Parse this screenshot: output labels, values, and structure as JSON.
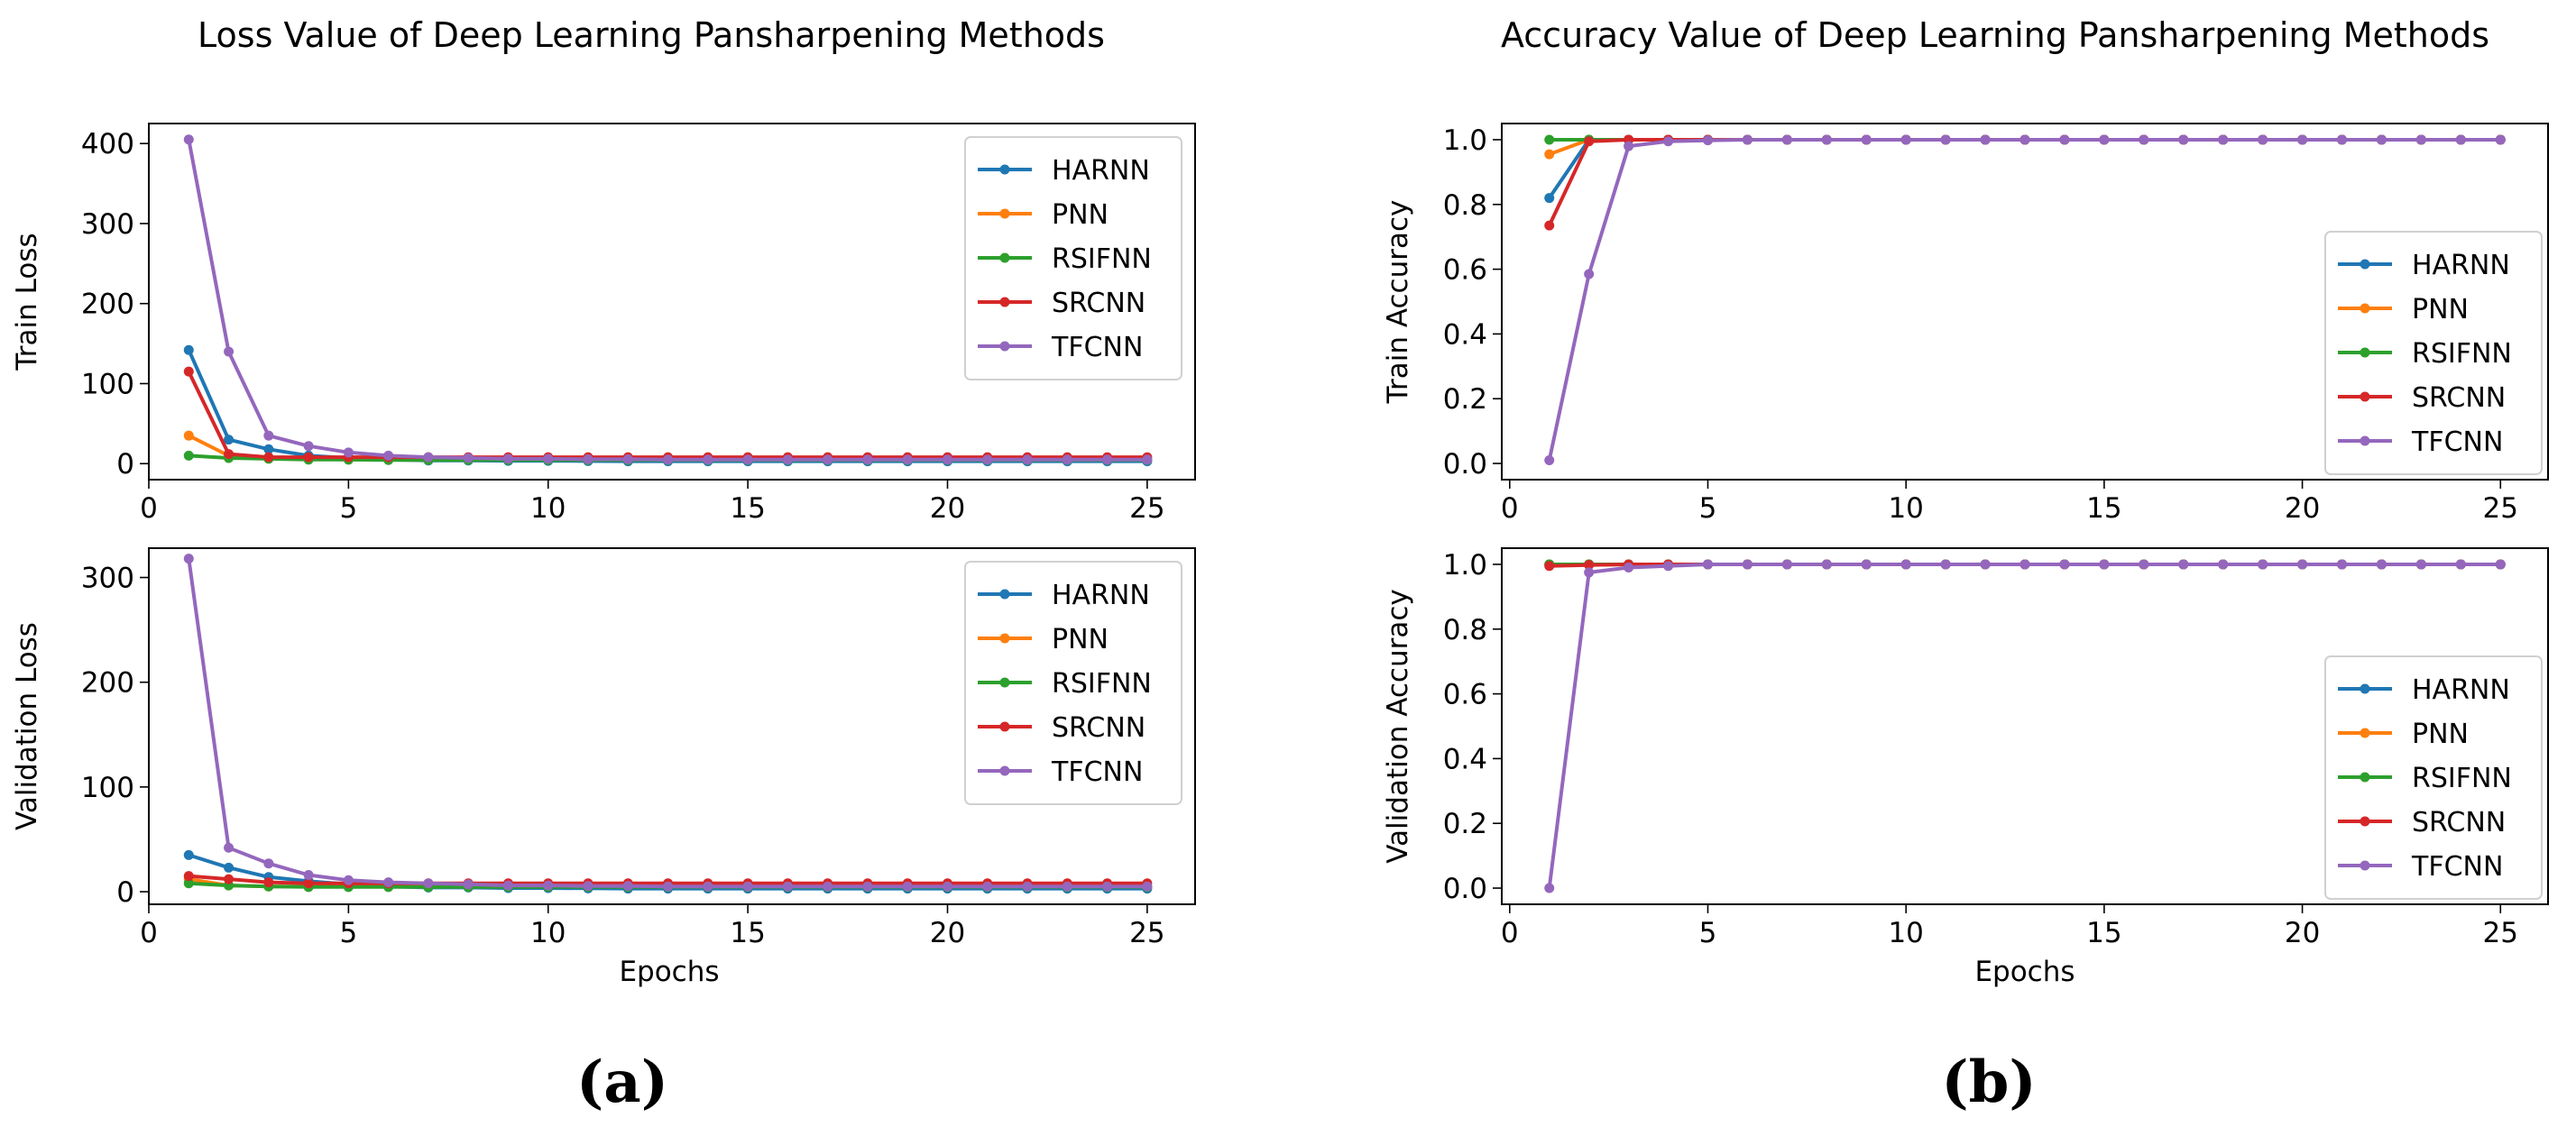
{
  "colors": {
    "HARNN": "#1f77b4",
    "PNN": "#ff7f0e",
    "RSIFNN": "#2ca02c",
    "SRCNN": "#d62728",
    "TFCNN": "#9467bd"
  },
  "figures": [
    {
      "title": "Loss Value of Deep Learning Pansharpening Methods",
      "sublabel": "(a)"
    },
    {
      "title": "Accuracy Value of Deep Learning Pansharpening Methods",
      "sublabel": "(b)"
    }
  ],
  "chart_data": [
    {
      "type": "line",
      "ylabel": "Train Loss",
      "xlabel": "",
      "xlim": [
        0,
        26.2
      ],
      "ylim": [
        -20,
        425
      ],
      "xticks": [
        0,
        5,
        10,
        15,
        20,
        25
      ],
      "yticks": [
        0,
        100,
        200,
        300,
        400
      ],
      "ytick_labels": [
        "0",
        "100",
        "200",
        "300",
        "400"
      ],
      "legend": "top-right",
      "x": [
        1,
        2,
        3,
        4,
        5,
        6,
        7,
        8,
        9,
        10,
        11,
        12,
        13,
        14,
        15,
        16,
        17,
        18,
        19,
        20,
        21,
        22,
        23,
        24,
        25
      ],
      "series": [
        {
          "name": "HARNN",
          "values": [
            142,
            30,
            18,
            10,
            7,
            5,
            4,
            4,
            3.5,
            3.5,
            3.2,
            3,
            3,
            3,
            3,
            3,
            3,
            3,
            3,
            3,
            3,
            3,
            3,
            3,
            3
          ]
        },
        {
          "name": "PNN",
          "values": [
            35,
            10,
            7,
            6,
            5,
            5,
            5,
            5,
            5,
            5,
            5,
            5,
            5,
            5,
            5,
            5,
            5,
            5,
            5,
            5,
            5,
            5,
            5,
            5,
            5
          ]
        },
        {
          "name": "RSIFNN",
          "values": [
            10,
            7,
            6,
            5,
            5,
            4.5,
            4.5,
            4.5,
            4.5,
            4.5,
            4.5,
            4.5,
            4.5,
            4.5,
            4.5,
            4.5,
            4.5,
            4.5,
            4.5,
            4.5,
            4.5,
            4.5,
            4.5,
            4.5,
            4.5
          ]
        },
        {
          "name": "SRCNN",
          "values": [
            115,
            12,
            8,
            8,
            8,
            8,
            8,
            8,
            8,
            8,
            8,
            8,
            8,
            8,
            8,
            8,
            8,
            8,
            8,
            8,
            8,
            8,
            8,
            8,
            8
          ]
        },
        {
          "name": "TFCNN",
          "values": [
            405,
            140,
            35,
            22,
            14,
            10,
            8,
            7,
            6,
            6,
            5.5,
            5.5,
            5,
            5,
            5,
            5,
            5,
            5,
            5,
            5,
            5,
            5,
            5,
            5,
            5
          ]
        }
      ]
    },
    {
      "type": "line",
      "ylabel": "Validation Loss",
      "xlabel": "Epochs",
      "xlim": [
        0,
        26.2
      ],
      "ylim": [
        -12,
        328
      ],
      "xticks": [
        0,
        5,
        10,
        15,
        20,
        25
      ],
      "yticks": [
        0,
        100,
        200,
        300
      ],
      "ytick_labels": [
        "0",
        "100",
        "200",
        "300"
      ],
      "legend": "top-right",
      "x": [
        1,
        2,
        3,
        4,
        5,
        6,
        7,
        8,
        9,
        10,
        11,
        12,
        13,
        14,
        15,
        16,
        17,
        18,
        19,
        20,
        21,
        22,
        23,
        24,
        25
      ],
      "series": [
        {
          "name": "HARNN",
          "values": [
            35,
            23,
            14,
            10,
            7,
            5,
            4,
            4,
            3.5,
            3.5,
            3.2,
            3,
            3,
            3,
            3,
            3,
            3,
            3,
            3,
            3,
            3,
            3,
            3,
            3,
            3
          ]
        },
        {
          "name": "PNN",
          "values": [
            12,
            6,
            5,
            5,
            5,
            5,
            5,
            5,
            5,
            5,
            5,
            5,
            5,
            5,
            5,
            5,
            5,
            5,
            5,
            5,
            5,
            5,
            5,
            5,
            5
          ]
        },
        {
          "name": "RSIFNN",
          "values": [
            8,
            6,
            5,
            4.5,
            4.5,
            4.5,
            4.5,
            4.5,
            4.5,
            4.5,
            4.5,
            4.5,
            4.5,
            4.5,
            4.5,
            4.5,
            4.5,
            4.5,
            4.5,
            4.5,
            4.5,
            4.5,
            4.5,
            4.5,
            4.5
          ]
        },
        {
          "name": "SRCNN",
          "values": [
            15,
            12,
            9,
            8,
            8,
            8,
            8,
            8,
            8,
            8,
            8,
            8,
            8,
            8,
            8,
            8,
            8,
            8,
            8,
            8,
            8,
            8,
            8,
            8,
            8
          ]
        },
        {
          "name": "TFCNN",
          "values": [
            318,
            42,
            27,
            16,
            11,
            9,
            8,
            7,
            6,
            6,
            5.5,
            5.5,
            5,
            5,
            5,
            5,
            5,
            5,
            5,
            5,
            5,
            5,
            5,
            5,
            5
          ]
        }
      ]
    },
    {
      "type": "line",
      "ylabel": "Train Accuracy",
      "xlabel": "",
      "xlim": [
        -0.2,
        26.2
      ],
      "ylim": [
        -0.05,
        1.05
      ],
      "xticks": [
        0,
        5,
        10,
        15,
        20,
        25
      ],
      "yticks": [
        0,
        0.2,
        0.4,
        0.6,
        0.8,
        1.0
      ],
      "ytick_labels": [
        "0.0",
        "0.2",
        "0.4",
        "0.6",
        "0.8",
        "1.0"
      ],
      "legend": "right",
      "x": [
        1,
        2,
        3,
        4,
        5,
        6,
        7,
        8,
        9,
        10,
        11,
        12,
        13,
        14,
        15,
        16,
        17,
        18,
        19,
        20,
        21,
        22,
        23,
        24,
        25
      ],
      "series": [
        {
          "name": "HARNN",
          "values": [
            0.82,
            1,
            1,
            1,
            1,
            1,
            1,
            1,
            1,
            1,
            1,
            1,
            1,
            1,
            1,
            1,
            1,
            1,
            1,
            1,
            1,
            1,
            1,
            1,
            1
          ]
        },
        {
          "name": "PNN",
          "values": [
            0.955,
            1,
            1,
            1,
            1,
            1,
            1,
            1,
            1,
            1,
            1,
            1,
            1,
            1,
            1,
            1,
            1,
            1,
            1,
            1,
            1,
            1,
            1,
            1,
            1
          ]
        },
        {
          "name": "RSIFNN",
          "values": [
            1,
            1,
            1,
            1,
            1,
            1,
            1,
            1,
            1,
            1,
            1,
            1,
            1,
            1,
            1,
            1,
            1,
            1,
            1,
            1,
            1,
            1,
            1,
            1,
            1
          ]
        },
        {
          "name": "SRCNN",
          "values": [
            0.735,
            0.995,
            1,
            1,
            1,
            1,
            1,
            1,
            1,
            1,
            1,
            1,
            1,
            1,
            1,
            1,
            1,
            1,
            1,
            1,
            1,
            1,
            1,
            1,
            1
          ]
        },
        {
          "name": "TFCNN",
          "values": [
            0.01,
            0.585,
            0.98,
            0.995,
            0.998,
            1,
            1,
            1,
            1,
            1,
            1,
            1,
            1,
            1,
            1,
            1,
            1,
            1,
            1,
            1,
            1,
            1,
            1,
            1,
            1
          ]
        }
      ]
    },
    {
      "type": "line",
      "ylabel": "Validation Accuracy",
      "xlabel": "Epochs",
      "xlim": [
        -0.2,
        26.2
      ],
      "ylim": [
        -0.05,
        1.05
      ],
      "xticks": [
        0,
        5,
        10,
        15,
        20,
        25
      ],
      "yticks": [
        0,
        0.2,
        0.4,
        0.6,
        0.8,
        1.0
      ],
      "ytick_labels": [
        "0.0",
        "0.2",
        "0.4",
        "0.6",
        "0.8",
        "1.0"
      ],
      "legend": "right",
      "x": [
        1,
        2,
        3,
        4,
        5,
        6,
        7,
        8,
        9,
        10,
        11,
        12,
        13,
        14,
        15,
        16,
        17,
        18,
        19,
        20,
        21,
        22,
        23,
        24,
        25
      ],
      "series": [
        {
          "name": "HARNN",
          "values": [
            1,
            1,
            1,
            1,
            1,
            1,
            1,
            1,
            1,
            1,
            1,
            1,
            1,
            1,
            1,
            1,
            1,
            1,
            1,
            1,
            1,
            1,
            1,
            1,
            1
          ]
        },
        {
          "name": "PNN",
          "values": [
            1,
            1,
            1,
            1,
            1,
            1,
            1,
            1,
            1,
            1,
            1,
            1,
            1,
            1,
            1,
            1,
            1,
            1,
            1,
            1,
            1,
            1,
            1,
            1,
            1
          ]
        },
        {
          "name": "RSIFNN",
          "values": [
            1,
            1,
            1,
            1,
            1,
            1,
            1,
            1,
            1,
            1,
            1,
            1,
            1,
            1,
            1,
            1,
            1,
            1,
            1,
            1,
            1,
            1,
            1,
            1,
            1
          ]
        },
        {
          "name": "SRCNN",
          "values": [
            0.995,
            0.998,
            1,
            1,
            1,
            1,
            1,
            1,
            1,
            1,
            1,
            1,
            1,
            1,
            1,
            1,
            1,
            1,
            1,
            1,
            1,
            1,
            1,
            1,
            1
          ]
        },
        {
          "name": "TFCNN",
          "values": [
            0,
            0.975,
            0.99,
            0.995,
            1,
            1,
            1,
            1,
            1,
            1,
            1,
            1,
            1,
            1,
            1,
            1,
            1,
            1,
            1,
            1,
            1,
            1,
            1,
            1,
            1
          ]
        }
      ]
    }
  ]
}
